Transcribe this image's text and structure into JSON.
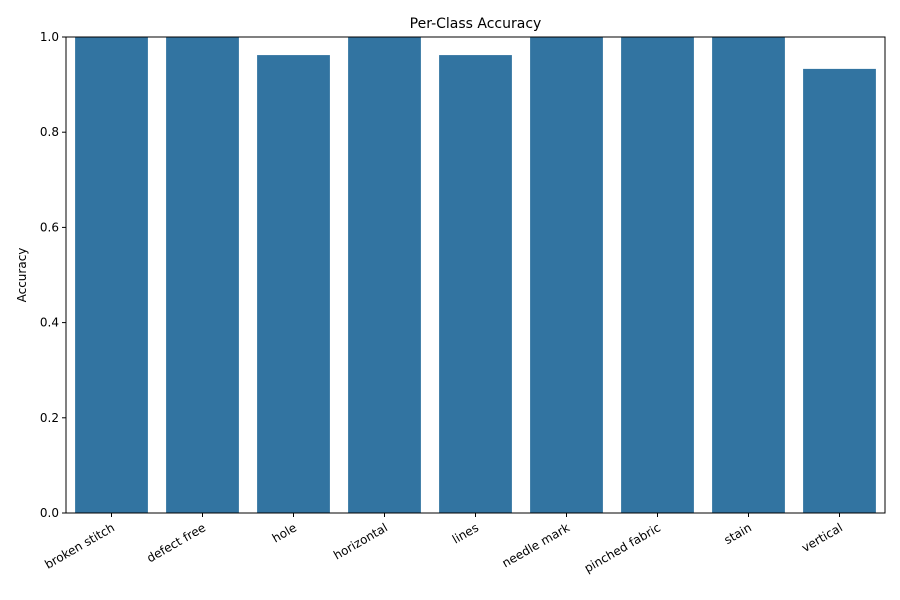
{
  "chart_data": {
    "type": "bar",
    "title": "Per-Class Accuracy",
    "xlabel": "",
    "ylabel": "Accuracy",
    "categories": [
      "broken stitch",
      "defect free",
      "hole",
      "horizontal",
      "lines",
      "needle mark",
      "pinched fabric",
      "stain",
      "vertical"
    ],
    "values": [
      1.0,
      1.0,
      0.962,
      1.0,
      0.962,
      1.0,
      1.0,
      1.0,
      0.933
    ],
    "ylim": [
      0,
      1.0
    ],
    "yticks": [
      "0.0",
      "0.2",
      "0.4",
      "0.6",
      "0.8",
      "1.0"
    ],
    "bar_color": "#3274a1",
    "grid": false,
    "legend": false
  }
}
